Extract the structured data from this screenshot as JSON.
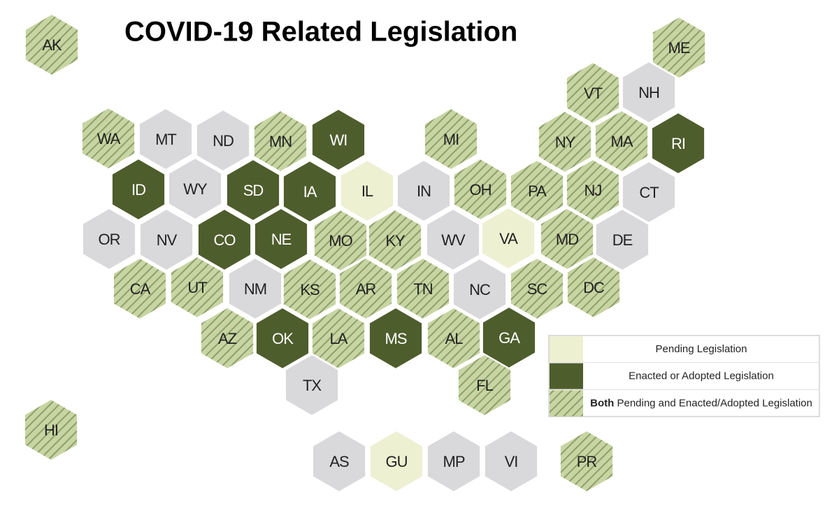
{
  "title": "COVID-19 Related Legislation",
  "default_color": "#d9d9dc",
  "legend": [
    {
      "label": "Pending Legislation",
      "color": "#eef0d2",
      "text_color": "#222222"
    },
    {
      "label": "Enacted or Adopted Legislation",
      "color": "#4e5d2c",
      "text_color": "#ffffff"
    },
    {
      "label_bold": "Both",
      "label": "Pending and Enacted/Adopted Legislation",
      "color": "#c8d5a2",
      "hatch": "#8e9f6c",
      "text_color": "#222222"
    }
  ],
  "hexes": [
    {
      "label": "AK",
      "legend": 2
    },
    {
      "label": "ME",
      "legend": 2
    },
    {
      "label": "VT",
      "legend": 2
    },
    {
      "label": "NH",
      "legend": null
    },
    {
      "label": "WA",
      "legend": 2
    },
    {
      "label": "MT",
      "legend": null
    },
    {
      "label": "ND",
      "legend": null
    },
    {
      "label": "MN",
      "legend": 2
    },
    {
      "label": "WI",
      "legend": 1
    },
    {
      "label": "MI",
      "legend": 2
    },
    {
      "label": "NY",
      "legend": 2
    },
    {
      "label": "MA",
      "legend": 2
    },
    {
      "label": "RI",
      "legend": 1
    },
    {
      "label": "ID",
      "legend": 1
    },
    {
      "label": "WY",
      "legend": null
    },
    {
      "label": "SD",
      "legend": 1
    },
    {
      "label": "IA",
      "legend": 1
    },
    {
      "label": "IL",
      "legend": 0
    },
    {
      "label": "IN",
      "legend": null
    },
    {
      "label": "OH",
      "legend": 2
    },
    {
      "label": "PA",
      "legend": 2
    },
    {
      "label": "NJ",
      "legend": 2
    },
    {
      "label": "CT",
      "legend": null
    },
    {
      "label": "OR",
      "legend": null
    },
    {
      "label": "NV",
      "legend": null
    },
    {
      "label": "CO",
      "legend": 1
    },
    {
      "label": "NE",
      "legend": 1
    },
    {
      "label": "MO",
      "legend": 2
    },
    {
      "label": "KY",
      "legend": 2
    },
    {
      "label": "WV",
      "legend": null
    },
    {
      "label": "VA",
      "legend": 0
    },
    {
      "label": "MD",
      "legend": 2
    },
    {
      "label": "DE",
      "legend": null
    },
    {
      "label": "CA",
      "legend": 2
    },
    {
      "label": "UT",
      "legend": 2
    },
    {
      "label": "NM",
      "legend": null
    },
    {
      "label": "KS",
      "legend": 2
    },
    {
      "label": "AR",
      "legend": 2
    },
    {
      "label": "TN",
      "legend": 2
    },
    {
      "label": "NC",
      "legend": null
    },
    {
      "label": "SC",
      "legend": 2
    },
    {
      "label": "DC",
      "legend": 2
    },
    {
      "label": "AZ",
      "legend": 2
    },
    {
      "label": "OK",
      "legend": 1
    },
    {
      "label": "LA",
      "legend": 2
    },
    {
      "label": "MS",
      "legend": 1
    },
    {
      "label": "AL",
      "legend": 2
    },
    {
      "label": "GA",
      "legend": 1
    },
    {
      "label": "TX",
      "legend": null
    },
    {
      "label": "FL",
      "legend": 2
    },
    {
      "label": "HI",
      "legend": 2
    },
    {
      "label": "AS",
      "legend": null
    },
    {
      "label": "GU",
      "legend": 0
    },
    {
      "label": "MP",
      "legend": null
    },
    {
      "label": "VI",
      "legend": null
    },
    {
      "label": "PR",
      "legend": 2
    }
  ]
}
